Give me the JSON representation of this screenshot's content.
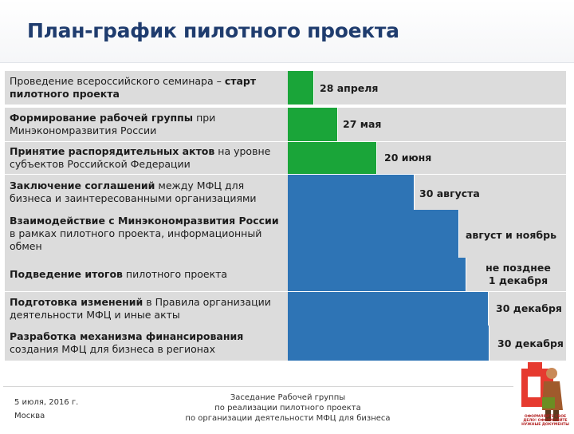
{
  "title": "План-график пилотного проекта",
  "rows": [
    {
      "label_parts": [
        {
          "t": "Проведение всероссийского семинара – ",
          "b": false
        },
        {
          "t": "старт пилотного проекта",
          "b": true
        }
      ],
      "date": "28 апреля",
      "bar_color": "green"
    },
    {
      "label_parts": [
        {
          "t": "Формирование рабочей группы",
          "b": true
        },
        {
          "t": " при Минэкономразвития России",
          "b": false
        }
      ],
      "date": "27 мая",
      "bar_color": "green"
    },
    {
      "label_parts": [
        {
          "t": "Принятие распорядительных актов",
          "b": true
        },
        {
          "t": " на уровне субъектов Российской Федерации",
          "b": false
        }
      ],
      "date": "20 июня",
      "bar_color": "green"
    },
    {
      "label_parts": [
        {
          "t": "Заключение соглашений",
          "b": true
        },
        {
          "t": " между МФЦ для бизнеса и заинтересованными организациями",
          "b": false
        }
      ],
      "date": "30 августа",
      "bar_color": "blue"
    },
    {
      "label_parts": [
        {
          "t": "Взаимодействие с Минэкономразвития России",
          "b": true
        },
        {
          "t": " в рамках пилотного проекта, информационный обмен",
          "b": false
        }
      ],
      "date": "август и ноябрь",
      "bar_color": "blue"
    },
    {
      "label_parts": [
        {
          "t": "Подведение итогов",
          "b": true
        },
        {
          "t": " пилотного проекта",
          "b": false
        }
      ],
      "date": "не позднее\n1 декабря",
      "bar_color": "blue"
    },
    {
      "label_parts": [
        {
          "t": "Подготовка изменений",
          "b": true
        },
        {
          "t": " в Правила организации деятельности МФЦ  и иные акты",
          "b": false
        }
      ],
      "date": "30 декабря",
      "bar_color": "blue"
    },
    {
      "label_parts": [
        {
          "t": "Разработка механизма финансирования",
          "b": true
        },
        {
          "t": " создания МФЦ для бизнеса в регионах",
          "b": false
        }
      ],
      "date": "30 декабря",
      "bar_color": "blue"
    }
  ],
  "colors": {
    "green": "#1aa539",
    "blue": "#2e74b5",
    "row_bg": "#dcdcdc",
    "title": "#1f3c6e"
  },
  "footer": {
    "date": "5 июля, 2016 г.",
    "city": "Москва",
    "meeting_line1": "Заседание Рабочей группы",
    "meeting_line2": "по реализации пилотного проекта",
    "meeting_line3": "по организации деятельности МФЦ для бизнеса"
  },
  "logo": {
    "icon": "mfc-logo-icon",
    "text": "ОФОРМЛЯЙТЕ СВОЕ ДЕЛО! ОФОРМЛЯЙТЕ НУЖНЫЕ ДОКУМЕНТЫ"
  }
}
